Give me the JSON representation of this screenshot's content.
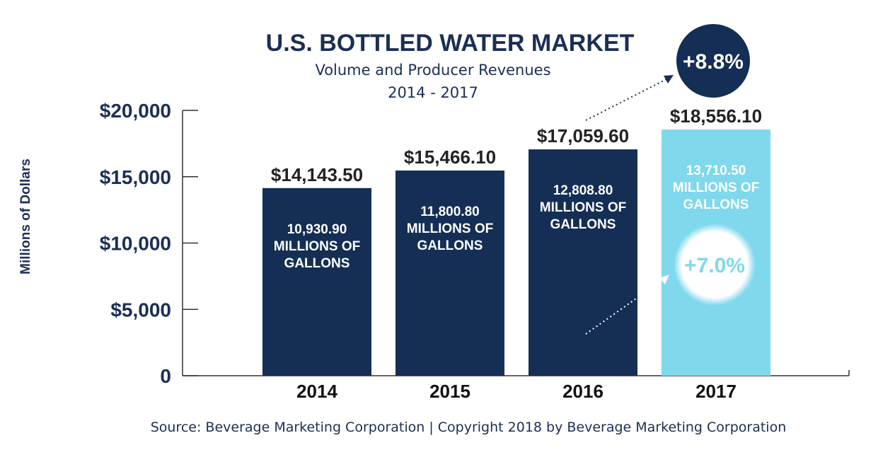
{
  "chart_data": {
    "type": "bar",
    "title": "U.S. BOTTLED WATER MARKET",
    "subtitle": "Volume and Producer Revenues",
    "period": "2014 - 2017",
    "ylabel": "Millions of Dollars",
    "ylim": [
      0,
      20000
    ],
    "yticks": [
      {
        "value": 0,
        "label": "0"
      },
      {
        "value": 5000,
        "label": "$5,000"
      },
      {
        "value": 10000,
        "label": "$10,000"
      },
      {
        "value": 15000,
        "label": "$15,000"
      },
      {
        "value": 20000,
        "label": "$20,000"
      }
    ],
    "categories": [
      "2014",
      "2015",
      "2016",
      "2017"
    ],
    "values": [
      14143.5,
      15466.1,
      17059.6,
      18556.1
    ],
    "value_labels": [
      "$14,143.50",
      "$15,466.10",
      "$17,059.60",
      "$18,556.10"
    ],
    "volume_values": [
      10930.9,
      11800.8,
      12808.8,
      13710.5
    ],
    "volume_labels": [
      [
        "10,930.90",
        "MILLIONS OF",
        "GALLONS"
      ],
      [
        "11,800.80",
        "MILLIONS OF",
        "GALLONS"
      ],
      [
        "12,808.80",
        "MILLIONS OF",
        "GALLONS"
      ],
      [
        "13,710.50",
        "MILLIONS OF",
        "GALLONS"
      ]
    ],
    "bar_colors": [
      "#142e55",
      "#142e55",
      "#142e55",
      "#7fd8ec"
    ],
    "annotations": [
      {
        "label": "+8.8%",
        "refers_to": "revenue growth 2017",
        "circle_color": "#142e55",
        "text_color": "#ffffff"
      },
      {
        "label": "+7.0%",
        "refers_to": "volume growth 2017",
        "circle_color": "#ffffff",
        "text_color": "#7fd8ec"
      }
    ],
    "source": "Source: Beverage Marketing Corporation | Copyright 2018 by Beverage Marketing Corporation"
  }
}
